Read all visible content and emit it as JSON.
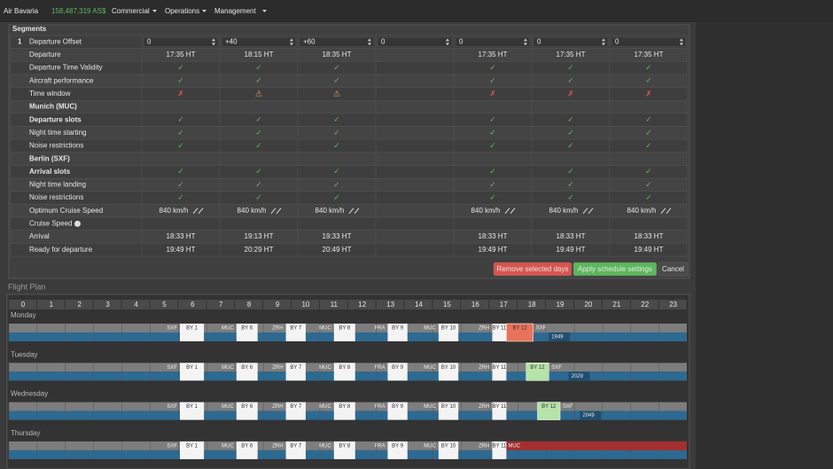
{
  "header": {
    "company": "Air Bavaria",
    "balance": "158,487,319 AS$",
    "menus": [
      "Commercial",
      "Operations",
      "Management"
    ]
  },
  "segments": {
    "title": "Segments",
    "segment_number": "1",
    "status_colors": {
      "✓": "#5cb85c",
      "✗": "#d9534f",
      "⚠": "#f0ad4e"
    },
    "rows": [
      {
        "label": "Departure Offset",
        "select": true,
        "cells": [
          "0",
          "+40",
          "+60",
          "0",
          "0",
          "0",
          "0"
        ]
      },
      {
        "label": "Departure",
        "cells": [
          "17:35 HT",
          "18:15 HT",
          "18:35 HT",
          null,
          "17:35 HT",
          "17:35 HT",
          "17:35 HT"
        ]
      },
      {
        "label": "Departure Time Validity",
        "cells": [
          "✓",
          "✓",
          "✓",
          null,
          "✓",
          "✓",
          "✓"
        ]
      },
      {
        "label": "Aircraft performance",
        "cells": [
          "✓",
          "✓",
          "✓",
          null,
          "✓",
          "✓",
          "✓"
        ]
      },
      {
        "label": "Time window",
        "cells": [
          "✗",
          "⚠",
          "⚠",
          null,
          "✗",
          "✗",
          "✗"
        ]
      },
      {
        "label": "Munich (MUC)",
        "bold": true
      },
      {
        "label": "Departure slots",
        "bold": true,
        "cells": [
          "✓",
          "✓",
          "✓",
          null,
          "✓",
          "✓",
          "✓"
        ]
      },
      {
        "label": "Night time starting",
        "cells": [
          "✓",
          "✓",
          "✓",
          null,
          "✓",
          "✓",
          "✓"
        ]
      },
      {
        "label": "Noise restrictions",
        "cells": [
          "✓",
          "✓",
          "✓",
          null,
          "✓",
          "✓",
          "✓"
        ]
      },
      {
        "label": "Berlin (SXF)",
        "bold": true
      },
      {
        "label": "Arrival slots",
        "bold": true,
        "cells": [
          "✓",
          "✓",
          "✓",
          null,
          "✓",
          "✓",
          "✓"
        ]
      },
      {
        "label": "Night time landing",
        "cells": [
          "✓",
          "✓",
          "✓",
          null,
          "✓",
          "✓",
          "✓"
        ]
      },
      {
        "label": "Noise restrictions",
        "cells": [
          "✓",
          "✓",
          "✓",
          null,
          "✓",
          "✓",
          "✓"
        ]
      },
      {
        "label": "Optimum Cruise Speed",
        "expand": true,
        "cells": [
          "840 km/h",
          "840 km/h",
          "840 km/h",
          null,
          "840 km/h",
          "840 km/h",
          "840 km/h"
        ]
      },
      {
        "label": "Cruise Speed",
        "help": true
      },
      {
        "label": "Arrival",
        "cells": [
          "18:33 HT",
          "19:13 HT",
          "19:33 HT",
          null,
          "18:33 HT",
          "18:33 HT",
          "18:33 HT"
        ]
      },
      {
        "label": "Ready for departure",
        "cells": [
          "19:49 HT",
          "20:29 HT",
          "20:49 HT",
          null,
          "19:49 HT",
          "19:49 HT",
          "19:49 HT"
        ]
      }
    ],
    "buttons": [
      {
        "label": "Remove selected days",
        "color": "#d9534f"
      },
      {
        "label": "Apply schedule settings",
        "color": "#5cb85c"
      },
      {
        "label": "Cancel",
        "color": "#4a4a4a"
      }
    ]
  },
  "flight_plan": {
    "title": "Flight Plan",
    "hours": [
      0,
      1,
      2,
      3,
      4,
      5,
      6,
      7,
      8,
      9,
      10,
      11,
      12,
      13,
      14,
      15,
      16,
      17,
      18,
      19,
      20,
      21,
      22,
      23
    ],
    "flights": [
      {
        "from": "SXF",
        "number": "BY 1",
        "start": 6.05,
        "end": 6.9
      },
      {
        "from": "MUC",
        "number": "BY 6",
        "start": 8.05,
        "end": 8.8
      },
      {
        "from": "ZRH",
        "number": "BY 7",
        "start": 9.8,
        "end": 10.5
      },
      {
        "from": "MUC",
        "number": "BY 8",
        "start": 11.5,
        "end": 12.25
      },
      {
        "from": "FRA",
        "number": "BY 9",
        "start": 13.4,
        "end": 14.1
      },
      {
        "from": "MUC",
        "number": "BY 10",
        "start": 15.2,
        "end": 15.9
      },
      {
        "from": "ZRH",
        "number": "BY 11",
        "start": 17.1,
        "end": 17.6
      }
    ],
    "days": [
      {
        "name": "Monday",
        "extra": {
          "number": "BY 12",
          "from": "SXF",
          "start": 17.6,
          "end": 18.55,
          "color": "#e8735a"
        },
        "ready": {
          "label": "1949",
          "at": 19.1
        }
      },
      {
        "name": "Tuesday",
        "extra": {
          "number": "BY 12",
          "from": "SXF",
          "start": 18.3,
          "end": 19.1,
          "color": "#b6e3a8"
        },
        "ready": {
          "label": "2029",
          "at": 19.8
        }
      },
      {
        "name": "Wednesday",
        "extra": {
          "number": "BY 12",
          "from": "SXF",
          "start": 18.7,
          "end": 19.5,
          "color": "#b6e3a8"
        },
        "ready": {
          "label": "2049",
          "at": 20.2
        }
      },
      {
        "name": "Thursday",
        "extra": {
          "number": "MUC",
          "start": 17.6,
          "end": 24,
          "color": "#a32f2f"
        }
      }
    ]
  }
}
